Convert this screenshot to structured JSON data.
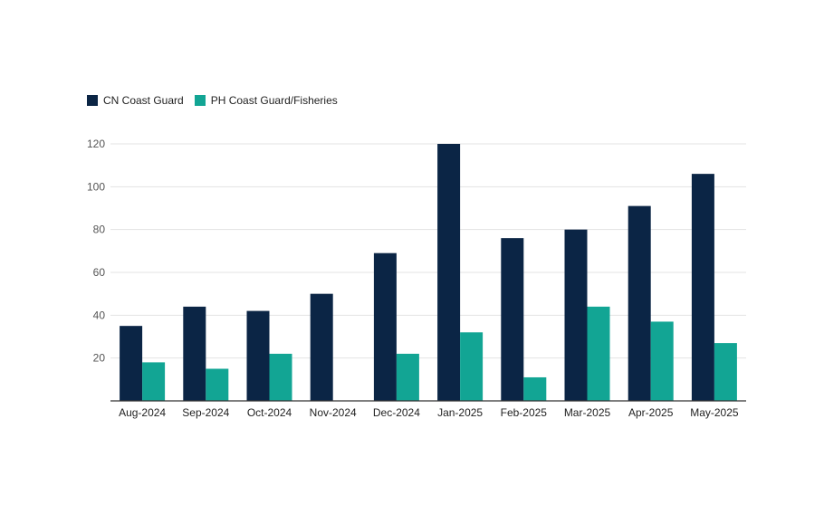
{
  "chart_data": {
    "type": "bar",
    "categories": [
      "Aug-2024",
      "Sep-2024",
      "Oct-2024",
      "Nov-2024",
      "Dec-2024",
      "Jan-2025",
      "Feb-2025",
      "Mar-2025",
      "Apr-2025",
      "May-2025"
    ],
    "series": [
      {
        "name": "CN Coast Guard",
        "color": "#0b2545",
        "values": [
          35,
          44,
          42,
          50,
          69,
          120,
          76,
          80,
          91,
          106
        ]
      },
      {
        "name": "PH Coast Guard/Fisheries",
        "color": "#12a594",
        "values": [
          18,
          15,
          22,
          0,
          22,
          32,
          11,
          44,
          37,
          27
        ]
      }
    ],
    "yticks": [
      20,
      40,
      60,
      80,
      100,
      120
    ],
    "ylim": [
      0,
      120
    ],
    "grid": true,
    "legend_position": "top-left"
  }
}
